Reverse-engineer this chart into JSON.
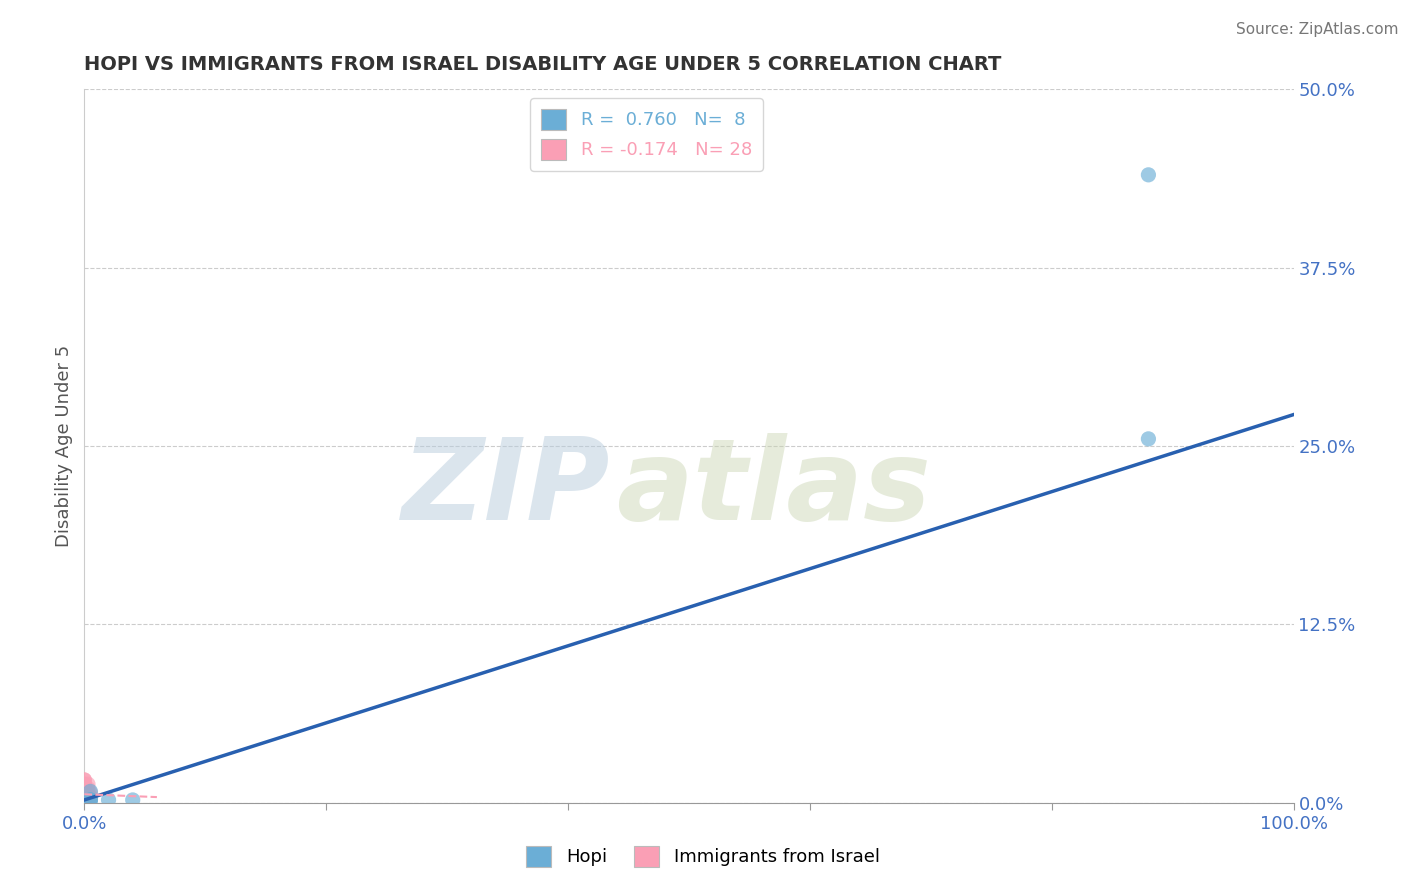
{
  "title": "HOPI VS IMMIGRANTS FROM ISRAEL DISABILITY AGE UNDER 5 CORRELATION CHART",
  "source_text": "Source: ZipAtlas.com",
  "ylabel": "Disability Age Under 5",
  "watermark_zip": "ZIP",
  "watermark_atlas": "atlas",
  "xlim": [
    0.0,
    1.0
  ],
  "ylim": [
    0.0,
    0.5
  ],
  "yticks": [
    0.0,
    0.125,
    0.25,
    0.375,
    0.5
  ],
  "ytick_labels": [
    "0.0%",
    "12.5%",
    "25.0%",
    "37.5%",
    "50.0%"
  ],
  "xticks": [
    0.0,
    0.2,
    0.4,
    0.6,
    0.8,
    1.0
  ],
  "xtick_labels": [
    "0.0%",
    "",
    "",
    "",
    "",
    "100.0%"
  ],
  "hopi_color": "#6baed6",
  "israel_color": "#fa9fb5",
  "hopi_R": 0.76,
  "hopi_N": 8,
  "israel_R": -0.174,
  "israel_N": 28,
  "hopi_scatter_x": [
    0.02,
    0.04,
    0.005,
    0.005,
    0.88,
    0.88,
    0.005,
    0.005
  ],
  "hopi_scatter_y": [
    0.002,
    0.002,
    0.002,
    0.008,
    0.255,
    0.44,
    0.002,
    0.002
  ],
  "israel_scatter_x": [
    0.0,
    0.0,
    0.0,
    0.0,
    0.0,
    0.0,
    0.0,
    0.0,
    0.0,
    0.0,
    0.0,
    0.0,
    0.0,
    0.0,
    0.0,
    0.0,
    0.0,
    0.0,
    0.0,
    0.0,
    0.003,
    0.003,
    0.003,
    0.003,
    0.005,
    0.005,
    0.005,
    0.003
  ],
  "israel_scatter_y": [
    0.0,
    0.0,
    0.0,
    0.0,
    0.0,
    0.0,
    0.0,
    0.0,
    0.003,
    0.003,
    0.006,
    0.006,
    0.01,
    0.01,
    0.013,
    0.013,
    0.016,
    0.016,
    0.0,
    0.0,
    0.003,
    0.005,
    0.007,
    0.01,
    0.004,
    0.004,
    0.007,
    0.013
  ],
  "hopi_line_x": [
    0.0,
    1.0
  ],
  "hopi_line_y": [
    0.002,
    0.272
  ],
  "israel_line_x": [
    0.0,
    0.06
  ],
  "israel_line_y": [
    0.006,
    0.004
  ],
  "background_color": "#ffffff",
  "grid_color": "#cccccc",
  "title_color": "#333333",
  "tick_color": "#4472c4",
  "line_color": "#2860b0"
}
